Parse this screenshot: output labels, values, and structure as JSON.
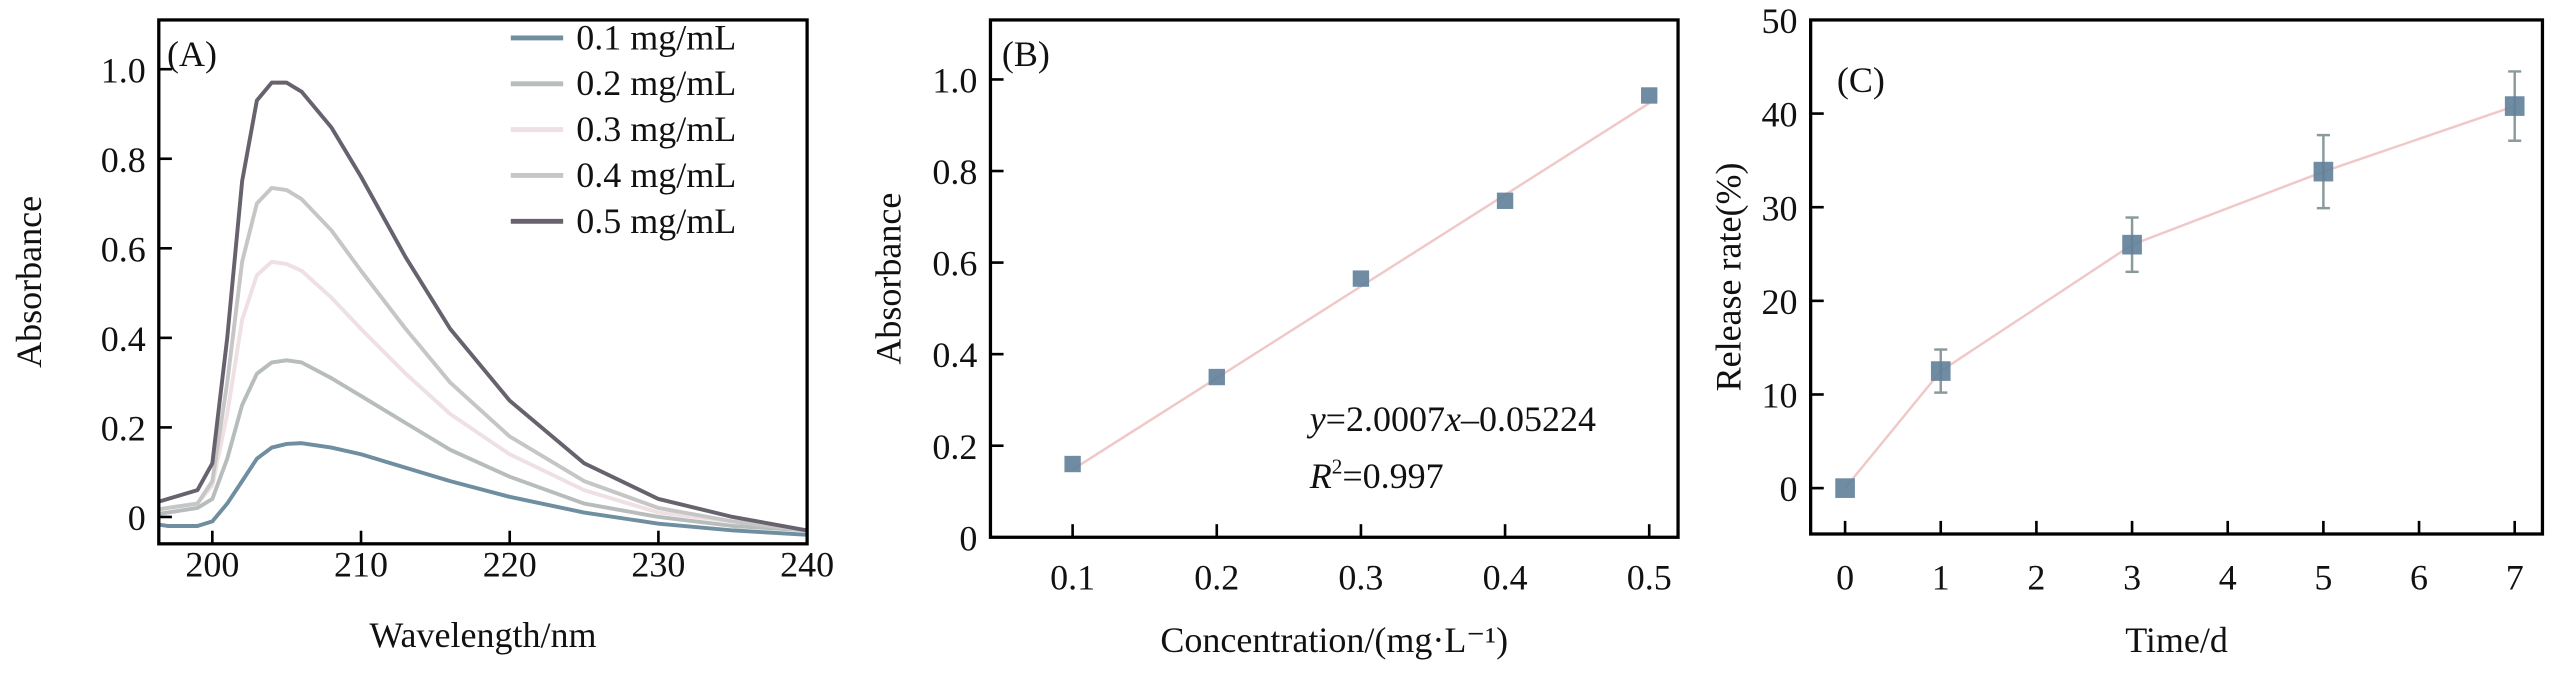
{
  "chart_data": [
    {
      "type": "line",
      "panel_label": "(A)",
      "xlabel": "Wavelength/nm",
      "ylabel": "Absorbance",
      "xlim": [
        196.4,
        240
      ],
      "ylim": [
        -0.06,
        1.11
      ],
      "xticks": [
        200,
        210,
        220,
        230,
        240
      ],
      "xtick_labels": [
        "200",
        "210",
        "220",
        "230",
        "240"
      ],
      "yticks": [
        0,
        0.2,
        0.4,
        0.6,
        0.8,
        1.0
      ],
      "ytick_labels": [
        "0",
        "0.2",
        "0.4",
        "0.6",
        "0.8",
        "1.0"
      ],
      "legend_position": "top-right",
      "grid": false,
      "x": [
        195,
        197,
        199,
        200,
        201,
        202,
        203,
        204,
        205,
        206,
        208,
        210,
        213,
        216,
        220,
        225,
        230,
        235,
        240
      ],
      "series": [
        {
          "name": "0.1 mg/mL",
          "color": "#6f8fa0",
          "values": [
            -0.01,
            -0.02,
            -0.02,
            -0.01,
            0.03,
            0.08,
            0.13,
            0.155,
            0.163,
            0.165,
            0.155,
            0.14,
            0.11,
            0.08,
            0.045,
            0.01,
            -0.015,
            -0.03,
            -0.04
          ]
        },
        {
          "name": "0.2 mg/mL",
          "color": "#b7bcbc",
          "values": [
            0.0,
            0.01,
            0.02,
            0.04,
            0.13,
            0.25,
            0.32,
            0.345,
            0.35,
            0.345,
            0.31,
            0.27,
            0.21,
            0.15,
            0.09,
            0.03,
            0.0,
            -0.02,
            -0.03
          ]
        },
        {
          "name": "0.3 mg/mL",
          "color": "#eee0e3",
          "values": [
            0.01,
            0.02,
            0.03,
            0.07,
            0.23,
            0.44,
            0.54,
            0.57,
            0.565,
            0.55,
            0.49,
            0.42,
            0.32,
            0.23,
            0.14,
            0.06,
            0.01,
            -0.01,
            -0.03
          ]
        },
        {
          "name": "0.4 mg/mL",
          "color": "#c6c6c6",
          "values": [
            0.01,
            0.02,
            0.03,
            0.08,
            0.3,
            0.57,
            0.7,
            0.735,
            0.73,
            0.71,
            0.64,
            0.55,
            0.42,
            0.3,
            0.18,
            0.08,
            0.02,
            -0.01,
            -0.03
          ]
        },
        {
          "name": "0.5 mg/mL",
          "color": "#67626d",
          "values": [
            0.02,
            0.04,
            0.06,
            0.12,
            0.4,
            0.75,
            0.93,
            0.97,
            0.97,
            0.95,
            0.87,
            0.76,
            0.58,
            0.42,
            0.26,
            0.12,
            0.04,
            0.0,
            -0.03
          ]
        }
      ]
    },
    {
      "type": "scatter",
      "panel_label": "(B)",
      "xlabel": "Concentration/(mg·L⁻¹)",
      "ylabel": "Absorbance",
      "xlim": [
        0.043,
        0.52
      ],
      "ylim": [
        0,
        1.13
      ],
      "xticks": [
        0.1,
        0.2,
        0.3,
        0.4,
        0.5
      ],
      "xtick_labels": [
        "0.1",
        "0.2",
        "0.3",
        "0.4",
        "0.5"
      ],
      "yticks": [
        0,
        0.2,
        0.4,
        0.6,
        0.8,
        1.0
      ],
      "ytick_labels": [
        "0",
        "0.2",
        "0.4",
        "0.6",
        "0.8",
        "1.0"
      ],
      "grid": false,
      "x": [
        0.1,
        0.2,
        0.3,
        0.4,
        0.5
      ],
      "values": [
        0.16,
        0.35,
        0.565,
        0.735,
        0.965
      ],
      "marker_color": "#5f7f99",
      "fit_line_color": "#f0c8c8",
      "fit": {
        "slope": 2.0007,
        "intercept": -0.05224
      },
      "annotations": {
        "equation": {
          "y_var": "y",
          "eq_part1": "=2.0007",
          "x_var": "x",
          "eq_part2": "–0.05224"
        },
        "r2": {
          "r_var": "R",
          "sup": "2",
          "value": "=0.997"
        }
      }
    },
    {
      "type": "line",
      "panel_label": "(C)",
      "xlabel": "Time/d",
      "ylabel": "Release rate(%)",
      "xlim": [
        -0.36,
        7.29
      ],
      "ylim": [
        -4.9,
        50
      ],
      "xticks": [
        0,
        1,
        2,
        3,
        4,
        5,
        6,
        7
      ],
      "xtick_labels": [
        "0",
        "1",
        "2",
        "3",
        "4",
        "5",
        "6",
        "7"
      ],
      "yticks": [
        0,
        10,
        20,
        30,
        40,
        50
      ],
      "ytick_labels": [
        "0",
        "10",
        "20",
        "30",
        "40",
        "50"
      ],
      "grid": false,
      "x": [
        0,
        1,
        3,
        5,
        7
      ],
      "values": [
        0,
        12.5,
        26,
        33.8,
        40.8
      ],
      "errors": [
        0.5,
        2.3,
        2.9,
        3.9,
        3.7
      ],
      "marker_color": "#5f7f99",
      "line_color": "#f0c8c8",
      "errorbar_color": "#8a9a9a"
    }
  ]
}
